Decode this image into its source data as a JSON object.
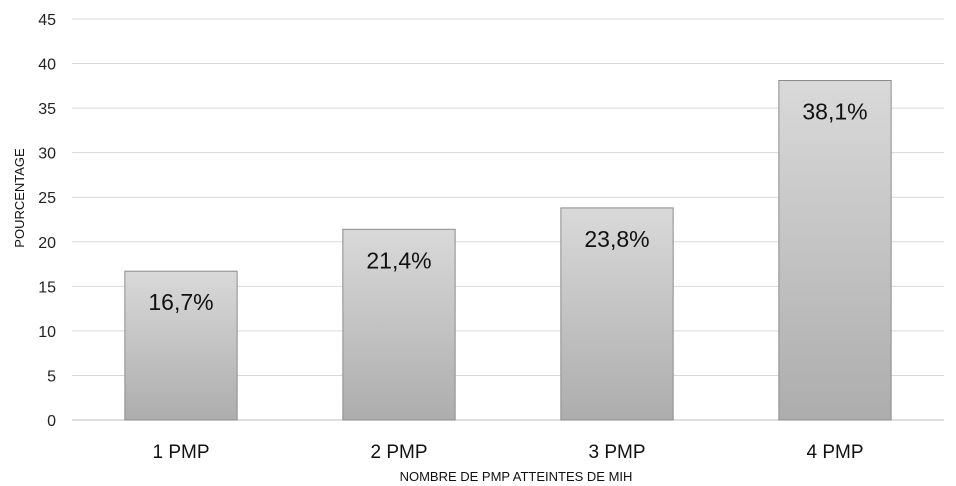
{
  "chart_data": {
    "type": "bar",
    "categories": [
      "1 PMP",
      "2 PMP",
      "3 PMP",
      "4 PMP"
    ],
    "values": [
      16.7,
      21.4,
      23.8,
      38.1
    ],
    "data_labels": [
      "16,7%",
      "21,4%",
      "23,8%",
      "38,1%"
    ],
    "xlabel": "NOMBRE DE PMP ATTEINTES DE MIH",
    "ylabel": "POURCENTAGE",
    "ylim": [
      0,
      45
    ],
    "yticks": [
      0,
      5,
      10,
      15,
      20,
      25,
      30,
      35,
      40,
      45
    ],
    "grid": true,
    "legend": "none",
    "colors": {
      "bar_top": "#d9d9d9",
      "bar_bottom": "#adadad",
      "bar_stroke": "#8c8c8c",
      "grid": "#d9d9d9",
      "axis": "#bfbfbf"
    }
  }
}
